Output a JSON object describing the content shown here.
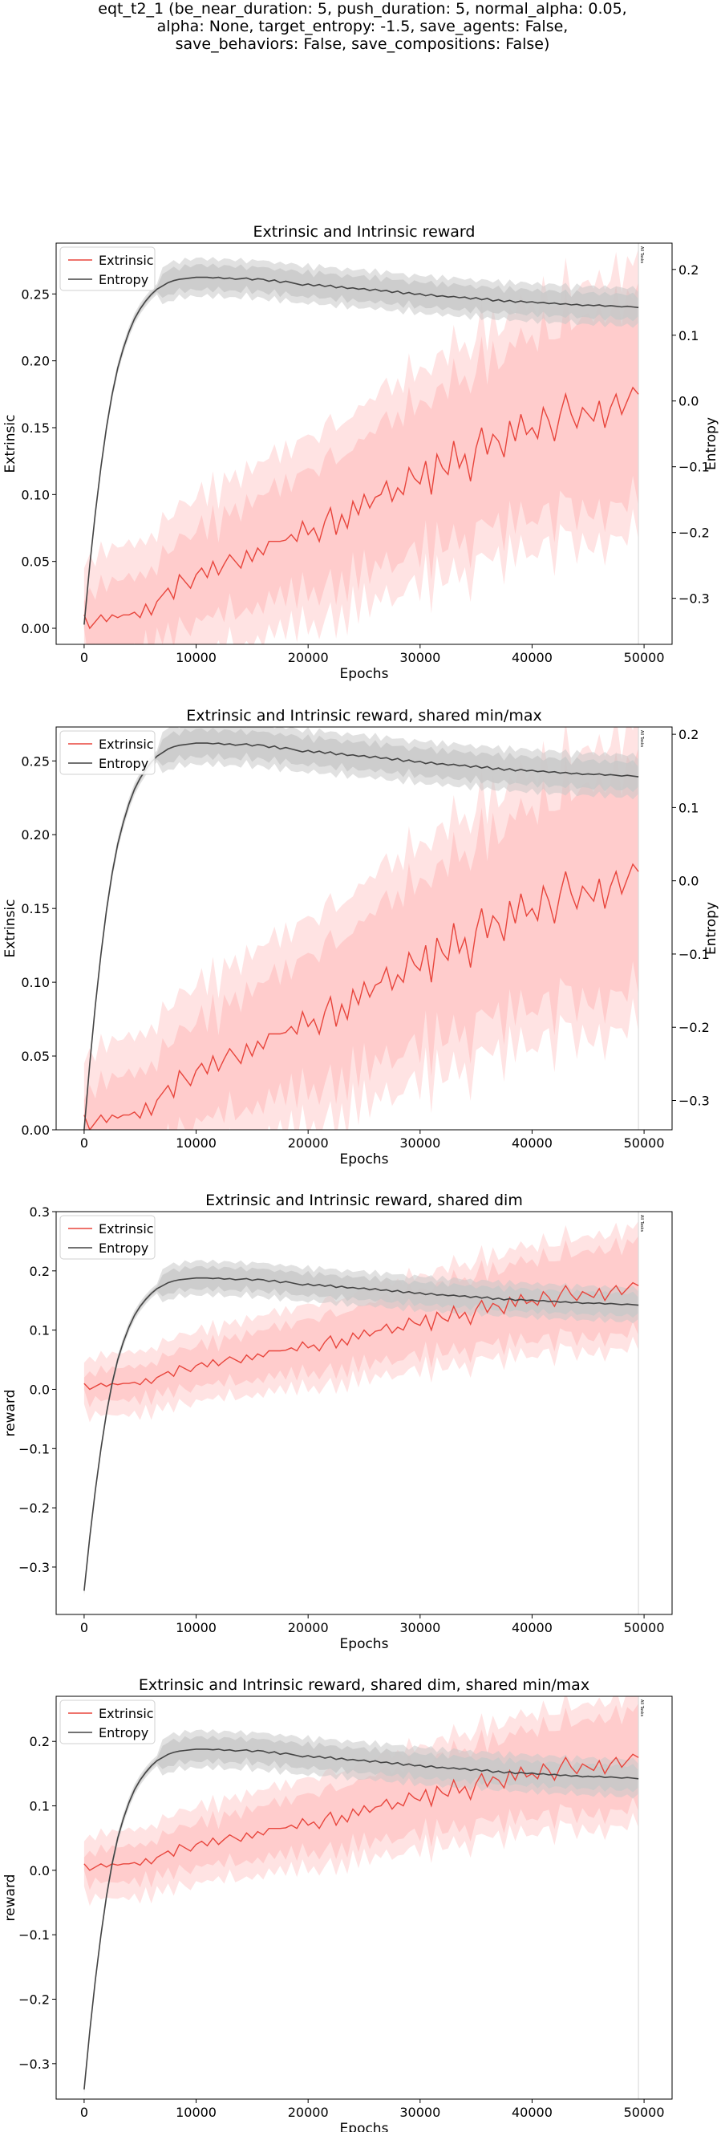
{
  "figure": {
    "suptitle_lines": [
      "eqt_t2_1 (be_near_duration: 5, push_duration: 5, normal_alpha: 0.05,",
      "alpha: None, target_entropy: -1.5, save_agents: False,",
      "save_behaviors: False, save_compositions: False)"
    ]
  },
  "chart_data": [
    {
      "type": "line",
      "title": "Extrinsic and Intrinsic reward",
      "xlabel": "Epochs",
      "ylabel": "Extrinsic",
      "y2label": "Entropy",
      "xlim": [
        -2500,
        52500
      ],
      "ylim": [
        -0.012,
        0.288
      ],
      "y2lim": [
        -0.37,
        0.24
      ],
      "xticks": [
        "0",
        "10000",
        "20000",
        "30000",
        "40000",
        "50000"
      ],
      "yticks": [
        "0.00",
        "0.05",
        "0.10",
        "0.15",
        "0.20",
        "0.25"
      ],
      "y2ticks": [
        "−0.3",
        "−0.2",
        "−0.1",
        "0.0",
        "0.1",
        "0.2"
      ],
      "legend": [
        "Extrinsic",
        "Entropy"
      ],
      "legend_loc": "upper-left",
      "vline_label": "All Tasks",
      "grid": false
    },
    {
      "type": "line",
      "title": "Extrinsic and Intrinsic reward, shared min/max",
      "xlabel": "Epochs",
      "ylabel": "Extrinsic",
      "y2label": "Entropy",
      "xlim": [
        -2500,
        52500
      ],
      "ylim": [
        0.0,
        0.273
      ],
      "y2lim": [
        -0.34,
        0.21
      ],
      "xticks": [
        "0",
        "10000",
        "20000",
        "30000",
        "40000",
        "50000"
      ],
      "yticks": [
        "0.00",
        "0.05",
        "0.10",
        "0.15",
        "0.20",
        "0.25"
      ],
      "y2ticks": [
        "−0.3",
        "−0.2",
        "−0.1",
        "0.0",
        "0.1",
        "0.2"
      ],
      "legend": [
        "Extrinsic",
        "Entropy"
      ],
      "legend_loc": "upper-left",
      "vline_label": "All Tasks",
      "grid": false
    },
    {
      "type": "line",
      "title": "Extrinsic and Intrinsic reward, shared dim",
      "xlabel": "Epochs",
      "ylabel": "reward",
      "xlim": [
        -2500,
        52500
      ],
      "ylim": [
        -0.38,
        0.3
      ],
      "xticks": [
        "0",
        "10000",
        "20000",
        "30000",
        "40000",
        "50000"
      ],
      "yticks": [
        "−0.3",
        "−0.2",
        "−0.1",
        "0.0",
        "0.1",
        "0.2",
        "0.3"
      ],
      "legend": [
        "Extrinsic",
        "Entropy"
      ],
      "legend_loc": "upper-left",
      "vline_label": "All Tasks",
      "grid": false
    },
    {
      "type": "line",
      "title": "Extrinsic and Intrinsic reward, shared dim, shared min/max",
      "xlabel": "Epochs",
      "ylabel": "reward",
      "xlim": [
        -2500,
        52500
      ],
      "ylim": [
        -0.355,
        0.27
      ],
      "xticks": [
        "0",
        "10000",
        "20000",
        "30000",
        "40000",
        "50000"
      ],
      "yticks": [
        "−0.3",
        "−0.2",
        "−0.1",
        "0.0",
        "0.1",
        "0.2"
      ],
      "legend": [
        "Extrinsic",
        "Entropy"
      ],
      "legend_loc": "upper-left",
      "vline_label": "All Tasks",
      "grid": false
    }
  ],
  "series_data": {
    "x": [
      0,
      500,
      1000,
      1500,
      2000,
      2500,
      3000,
      3500,
      4000,
      4500,
      5000,
      5500,
      6000,
      6500,
      7000,
      7500,
      8000,
      8500,
      9000,
      9500,
      10000,
      10500,
      11000,
      11500,
      12000,
      12500,
      13000,
      13500,
      14000,
      14500,
      15000,
      15500,
      16000,
      16500,
      17000,
      17500,
      18000,
      18500,
      19000,
      19500,
      20000,
      20500,
      21000,
      21500,
      22000,
      22500,
      23000,
      23500,
      24000,
      24500,
      25000,
      25500,
      26000,
      26500,
      27000,
      27500,
      28000,
      28500,
      29000,
      29500,
      30000,
      30500,
      31000,
      31500,
      32000,
      32500,
      33000,
      33500,
      34000,
      34500,
      35000,
      35500,
      36000,
      36500,
      37000,
      37500,
      38000,
      38500,
      39000,
      39500,
      40000,
      40500,
      41000,
      41500,
      42000,
      42500,
      43000,
      43500,
      44000,
      44500,
      45000,
      45500,
      46000,
      46500,
      47000,
      47500,
      48000,
      48500,
      49000,
      49500
    ],
    "extrinsic": [
      0.01,
      0.0,
      0.005,
      0.01,
      0.005,
      0.01,
      0.008,
      0.01,
      0.01,
      0.012,
      0.008,
      0.018,
      0.01,
      0.02,
      0.025,
      0.03,
      0.022,
      0.04,
      0.035,
      0.03,
      0.04,
      0.045,
      0.038,
      0.05,
      0.04,
      0.048,
      0.055,
      0.05,
      0.045,
      0.058,
      0.05,
      0.06,
      0.055,
      0.065,
      0.065,
      0.065,
      0.066,
      0.07,
      0.065,
      0.08,
      0.07,
      0.075,
      0.065,
      0.08,
      0.09,
      0.07,
      0.085,
      0.075,
      0.095,
      0.085,
      0.1,
      0.09,
      0.098,
      0.1,
      0.11,
      0.095,
      0.105,
      0.1,
      0.12,
      0.112,
      0.108,
      0.125,
      0.1,
      0.13,
      0.12,
      0.115,
      0.14,
      0.12,
      0.13,
      0.11,
      0.135,
      0.15,
      0.13,
      0.145,
      0.14,
      0.128,
      0.155,
      0.14,
      0.16,
      0.145,
      0.15,
      0.142,
      0.165,
      0.155,
      0.14,
      0.16,
      0.175,
      0.16,
      0.15,
      0.165,
      0.16,
      0.155,
      0.17,
      0.15,
      0.165,
      0.175,
      0.16,
      0.17,
      0.18,
      0.175
    ],
    "entropy_first_segment_x": [
      0,
      500,
      1000,
      1500,
      2000,
      2500,
      3000,
      3500,
      4000,
      4500,
      5000,
      5500,
      6000,
      6500,
      7000,
      7500,
      8000,
      8500,
      9000,
      9500,
      10000
    ],
    "entropy_first_segment_y": [
      -0.34,
      -0.25,
      -0.17,
      -0.1,
      -0.04,
      0.01,
      0.05,
      0.08,
      0.105,
      0.125,
      0.14,
      0.152,
      0.162,
      0.17,
      0.175,
      0.18,
      0.183,
      0.185,
      0.186,
      0.187,
      0.188
    ],
    "entropy_plateau": [
      0.188,
      0.188,
      0.187,
      0.188,
      0.186,
      0.187,
      0.185,
      0.186,
      0.187,
      0.184,
      0.186,
      0.185,
      0.182,
      0.184,
      0.18,
      0.182,
      0.18,
      0.178,
      0.176,
      0.178,
      0.175,
      0.177,
      0.174,
      0.176,
      0.172,
      0.174,
      0.171,
      0.172,
      0.17,
      0.171,
      0.168,
      0.17,
      0.167,
      0.168,
      0.165,
      0.167,
      0.163,
      0.165,
      0.162,
      0.163,
      0.16,
      0.162,
      0.159,
      0.16,
      0.158,
      0.159,
      0.157,
      0.158,
      0.155,
      0.157,
      0.154,
      0.156,
      0.152,
      0.154,
      0.151,
      0.153,
      0.15,
      0.152,
      0.15,
      0.151,
      0.149,
      0.15,
      0.148,
      0.149,
      0.147,
      0.148,
      0.146,
      0.147,
      0.145,
      0.146,
      0.145,
      0.146,
      0.144,
      0.145,
      0.144,
      0.143,
      0.144,
      0.143,
      0.142
    ]
  },
  "styles": {
    "extrinsic_color": "#e8453c",
    "extrinsic_band_color": "#ffcccc",
    "extrinsic_band_outer_color": "#ffe3e3",
    "entropy_color": "#444444",
    "entropy_band_color": "#c8c8c8",
    "vline_color": "#dddddd"
  }
}
